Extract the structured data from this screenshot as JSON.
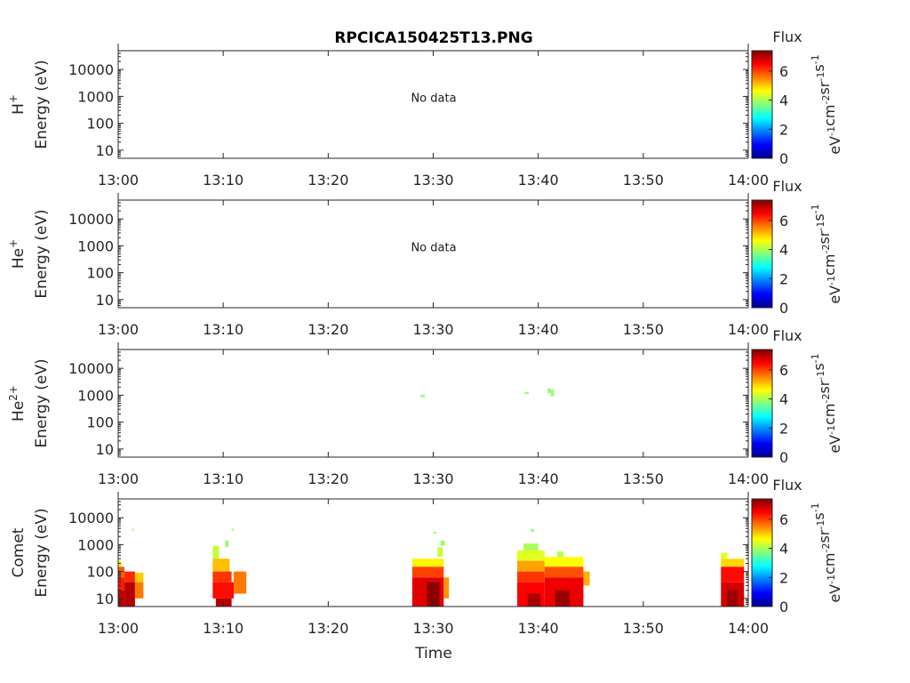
{
  "title": "RPCICA150425T13.PNG",
  "xlabel": "Time",
  "x_ticks": [
    "13:00",
    "13:10",
    "13:20",
    "13:30",
    "13:40",
    "13:50",
    "14:00"
  ],
  "y_ticks": [
    "10",
    "100",
    "1000",
    "10000"
  ],
  "ylabel_suffix": "Energy (eV)",
  "no_data_text": "No data",
  "colorbar": {
    "label": "Flux",
    "ticks": [
      "0",
      "2",
      "4",
      "6"
    ],
    "unit": "eV-1cm-2sr-1s-1",
    "range": [
      0,
      7.4
    ]
  },
  "chart_data": [
    {
      "type": "heatmap",
      "panel": "H+",
      "species": {
        "base": "H",
        "sup": "+"
      },
      "xlim": [
        "13:00",
        "14:00"
      ],
      "ylim": [
        5,
        50000
      ],
      "yscale": "log",
      "no_data": true,
      "cells": []
    },
    {
      "type": "heatmap",
      "panel": "He+",
      "species": {
        "base": "He",
        "sup": "+"
      },
      "xlim": [
        "13:00",
        "14:00"
      ],
      "ylim": [
        5,
        50000
      ],
      "yscale": "log",
      "no_data": true,
      "cells": []
    },
    {
      "type": "heatmap",
      "panel": "He2+",
      "species": {
        "base": "He",
        "sup": "2+"
      },
      "xlim": [
        "13:00",
        "14:00"
      ],
      "ylim": [
        5,
        50000
      ],
      "yscale": "log",
      "no_data": false,
      "cells": [
        {
          "t0": 28.8,
          "t1": 29.2,
          "e0": 850,
          "e1": 1050,
          "v": 3.9
        },
        {
          "t0": 38.7,
          "t1": 39.1,
          "e0": 1100,
          "e1": 1300,
          "v": 3.9
        },
        {
          "t0": 40.9,
          "t1": 41.2,
          "e0": 1200,
          "e1": 1800,
          "v": 3.8
        },
        {
          "t0": 41.2,
          "t1": 41.5,
          "e0": 900,
          "e1": 1600,
          "v": 3.9
        }
      ]
    },
    {
      "type": "heatmap",
      "panel": "Comet",
      "species": {
        "base": "Comet",
        "sup": ""
      },
      "xlim": [
        "13:00",
        "14:00"
      ],
      "ylim": [
        5,
        50000
      ],
      "yscale": "log",
      "no_data": false,
      "cells": [
        {
          "t0": 0.0,
          "t1": 0.3,
          "e0": 150,
          "e1": 250,
          "v": 4.6
        },
        {
          "t0": 0.0,
          "t1": 0.6,
          "e0": 60,
          "e1": 150,
          "v": 5.8
        },
        {
          "t0": 0.0,
          "t1": 0.6,
          "e0": 20,
          "e1": 60,
          "v": 6.3
        },
        {
          "t0": 0.0,
          "t1": 0.6,
          "e0": 5,
          "e1": 20,
          "v": 6.9
        },
        {
          "t0": 0.6,
          "t1": 1.6,
          "e0": 40,
          "e1": 100,
          "v": 6.2
        },
        {
          "t0": 0.6,
          "t1": 1.6,
          "e0": 5,
          "e1": 40,
          "v": 7.0
        },
        {
          "t0": 1.6,
          "t1": 2.4,
          "e0": 40,
          "e1": 90,
          "v": 5.0
        },
        {
          "t0": 1.6,
          "t1": 2.4,
          "e0": 10,
          "e1": 40,
          "v": 5.6
        },
        {
          "t0": 1.3,
          "t1": 1.45,
          "e0": 3300,
          "e1": 3900,
          "v": 3.9
        },
        {
          "t0": 9.0,
          "t1": 9.6,
          "e0": 300,
          "e1": 900,
          "v": 4.2
        },
        {
          "t0": 9.0,
          "t1": 10.6,
          "e0": 100,
          "e1": 300,
          "v": 5.1
        },
        {
          "t0": 9.0,
          "t1": 10.8,
          "e0": 40,
          "e1": 100,
          "v": 6.1
        },
        {
          "t0": 9.0,
          "t1": 11.0,
          "e0": 10,
          "e1": 40,
          "v": 6.4
        },
        {
          "t0": 9.3,
          "t1": 10.8,
          "e0": 5,
          "e1": 10,
          "v": 7.0
        },
        {
          "t0": 11.0,
          "t1": 12.2,
          "e0": 15,
          "e1": 100,
          "v": 5.6
        },
        {
          "t0": 10.2,
          "t1": 10.5,
          "e0": 800,
          "e1": 1400,
          "v": 3.9
        },
        {
          "t0": 10.8,
          "t1": 11.0,
          "e0": 3300,
          "e1": 3900,
          "v": 3.9
        },
        {
          "t0": 28.0,
          "t1": 31.0,
          "e0": 150,
          "e1": 300,
          "v": 4.7
        },
        {
          "t0": 28.0,
          "t1": 31.0,
          "e0": 60,
          "e1": 150,
          "v": 6.0
        },
        {
          "t0": 28.0,
          "t1": 31.0,
          "e0": 5,
          "e1": 60,
          "v": 6.7
        },
        {
          "t0": 29.4,
          "t1": 30.6,
          "e0": 5,
          "e1": 40,
          "v": 7.3
        },
        {
          "t0": 31.0,
          "t1": 31.5,
          "e0": 10,
          "e1": 60,
          "v": 5.4
        },
        {
          "t0": 30.4,
          "t1": 30.9,
          "e0": 350,
          "e1": 800,
          "v": 4.2
        },
        {
          "t0": 30.7,
          "t1": 31.1,
          "e0": 900,
          "e1": 1400,
          "v": 3.9
        },
        {
          "t0": 30.0,
          "t1": 30.3,
          "e0": 2600,
          "e1": 3000,
          "v": 3.9
        },
        {
          "t0": 38.0,
          "t1": 40.6,
          "e0": 250,
          "e1": 600,
          "v": 4.4
        },
        {
          "t0": 38.0,
          "t1": 40.6,
          "e0": 100,
          "e1": 250,
          "v": 5.3
        },
        {
          "t0": 38.0,
          "t1": 40.6,
          "e0": 40,
          "e1": 100,
          "v": 6.1
        },
        {
          "t0": 38.0,
          "t1": 40.6,
          "e0": 5,
          "e1": 40,
          "v": 6.5
        },
        {
          "t0": 39.0,
          "t1": 40.2,
          "e0": 5,
          "e1": 15,
          "v": 7.1
        },
        {
          "t0": 38.6,
          "t1": 40.0,
          "e0": 600,
          "e1": 1100,
          "v": 4.0
        },
        {
          "t0": 39.3,
          "t1": 39.6,
          "e0": 3000,
          "e1": 3800,
          "v": 3.8
        },
        {
          "t0": 40.6,
          "t1": 44.3,
          "e0": 150,
          "e1": 350,
          "v": 4.6
        },
        {
          "t0": 40.6,
          "t1": 44.3,
          "e0": 60,
          "e1": 150,
          "v": 5.9
        },
        {
          "t0": 40.6,
          "t1": 44.3,
          "e0": 5,
          "e1": 60,
          "v": 6.6
        },
        {
          "t0": 41.6,
          "t1": 43.0,
          "e0": 5,
          "e1": 20,
          "v": 7.2
        },
        {
          "t0": 44.3,
          "t1": 44.9,
          "e0": 30,
          "e1": 100,
          "v": 5.2
        },
        {
          "t0": 41.8,
          "t1": 42.4,
          "e0": 350,
          "e1": 550,
          "v": 4.1
        },
        {
          "t0": 57.4,
          "t1": 58.0,
          "e0": 300,
          "e1": 500,
          "v": 4.4
        },
        {
          "t0": 57.4,
          "t1": 59.6,
          "e0": 150,
          "e1": 300,
          "v": 4.9
        },
        {
          "t0": 57.4,
          "t1": 59.6,
          "e0": 40,
          "e1": 150,
          "v": 6.4
        },
        {
          "t0": 57.4,
          "t1": 59.6,
          "e0": 5,
          "e1": 40,
          "v": 6.8
        },
        {
          "t0": 58.0,
          "t1": 59.0,
          "e0": 5,
          "e1": 20,
          "v": 7.2
        }
      ]
    }
  ]
}
